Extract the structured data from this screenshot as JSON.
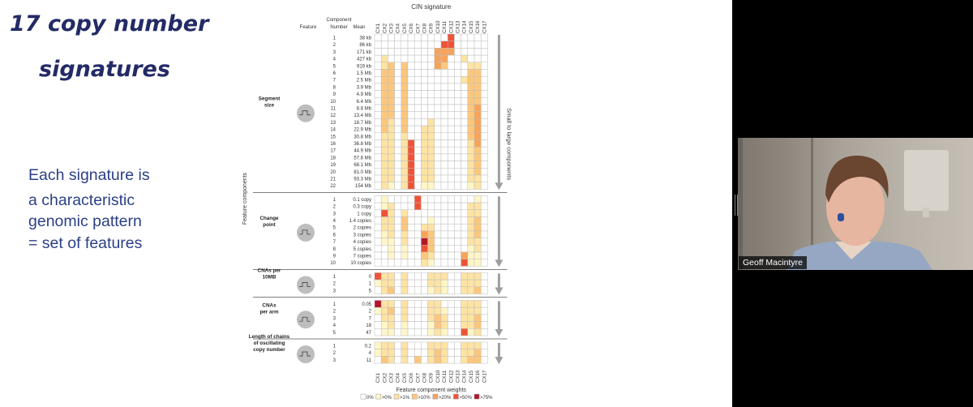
{
  "slide": {
    "title_line1": "17 copy number",
    "title_line2": "signatures",
    "body_lines": [
      "Each signature is",
      "a characteristic",
      "genomic pattern",
      "= set of features"
    ]
  },
  "figure": {
    "header_title": "CIN signature",
    "col_header_feature": "Feature",
    "col_header_component": "Component",
    "col_header_number": "Number",
    "col_header_mean": "Mean",
    "y_axis_label": "Feature components",
    "arrow_label": "Small to large components",
    "x_axis_label": "Feature component weights",
    "signatures": [
      "CX1",
      "CX2",
      "CX3",
      "CX4",
      "CX5",
      "CX6",
      "CX7",
      "CX8",
      "CX9",
      "CX10",
      "CX11",
      "CX12",
      "CX13",
      "CX14",
      "CX15",
      "CX16",
      "CX17"
    ],
    "legend": [
      {
        "label": "0%",
        "color": "#ffffff"
      },
      {
        "label": ">0%",
        "color": "#fff6c8"
      },
      {
        "label": ">1%",
        "color": "#fde3a4"
      },
      {
        "label": ">10%",
        "color": "#fcc77c"
      },
      {
        "label": ">20%",
        "color": "#f7a35a"
      },
      {
        "label": ">50%",
        "color": "#ee5338"
      },
      {
        "label": ">75%",
        "color": "#b3152b"
      }
    ],
    "features": [
      {
        "name_lines": [
          "Segment",
          "size"
        ],
        "components": [
          {
            "n": "1",
            "mean": "38 kb",
            "levels": [
              0,
              0,
              0,
              0,
              0,
              0,
              0,
              0,
              0,
              0,
              0,
              5,
              0,
              0,
              0,
              0,
              0
            ]
          },
          {
            "n": "2",
            "mean": "86 kb",
            "levels": [
              0,
              0,
              0,
              0,
              0,
              0,
              0,
              0,
              0,
              0,
              5,
              5,
              0,
              0,
              0,
              0,
              0
            ]
          },
          {
            "n": "3",
            "mean": "171 kb",
            "levels": [
              0,
              0,
              0,
              0,
              0,
              0,
              0,
              0,
              0,
              4,
              4,
              4,
              0,
              0,
              0,
              0,
              0
            ]
          },
          {
            "n": "4",
            "mean": "427 kb",
            "levels": [
              0,
              2,
              0,
              0,
              0,
              0,
              0,
              0,
              0,
              4,
              4,
              0,
              0,
              2,
              0,
              0,
              0
            ]
          },
          {
            "n": "5",
            "mean": "919 kb",
            "levels": [
              0,
              2,
              3,
              0,
              3,
              0,
              0,
              0,
              0,
              4,
              3,
              0,
              0,
              0,
              2,
              2,
              0
            ]
          },
          {
            "n": "6",
            "mean": "1.5 Mb",
            "levels": [
              0,
              3,
              3,
              0,
              3,
              0,
              0,
              0,
              0,
              0,
              0,
              0,
              0,
              0,
              3,
              3,
              0
            ]
          },
          {
            "n": "7",
            "mean": "2.5 Mb",
            "levels": [
              0,
              3,
              3,
              0,
              3,
              0,
              0,
              0,
              0,
              0,
              0,
              0,
              0,
              2,
              3,
              3,
              0
            ]
          },
          {
            "n": "8",
            "mean": "3.9 Mb",
            "levels": [
              0,
              3,
              3,
              0,
              3,
              0,
              0,
              0,
              0,
              0,
              0,
              0,
              0,
              0,
              3,
              3,
              0
            ]
          },
          {
            "n": "9",
            "mean": "4.9 Mb",
            "levels": [
              0,
              3,
              3,
              0,
              3,
              0,
              0,
              0,
              0,
              0,
              0,
              0,
              0,
              0,
              3,
              3,
              0
            ]
          },
          {
            "n": "10",
            "mean": "6.4 Mb",
            "levels": [
              0,
              3,
              3,
              0,
              3,
              0,
              0,
              0,
              0,
              0,
              0,
              0,
              0,
              0,
              3,
              3,
              0
            ]
          },
          {
            "n": "11",
            "mean": "8.8 Mb",
            "levels": [
              0,
              3,
              3,
              0,
              3,
              0,
              0,
              0,
              0,
              0,
              0,
              0,
              0,
              0,
              3,
              4,
              0
            ]
          },
          {
            "n": "12",
            "mean": "13.4 Mb",
            "levels": [
              0,
              3,
              3,
              0,
              3,
              0,
              0,
              0,
              0,
              0,
              0,
              0,
              0,
              0,
              3,
              4,
              0
            ]
          },
          {
            "n": "13",
            "mean": "18.7 Mb",
            "levels": [
              0,
              3,
              2,
              0,
              3,
              0,
              0,
              0,
              2,
              0,
              0,
              0,
              0,
              0,
              3,
              4,
              0
            ]
          },
          {
            "n": "14",
            "mean": "22.9 Mb",
            "levels": [
              0,
              3,
              2,
              0,
              3,
              0,
              0,
              2,
              2,
              0,
              0,
              0,
              0,
              0,
              3,
              4,
              0
            ]
          },
          {
            "n": "15",
            "mean": "30.8 Mb",
            "levels": [
              0,
              2,
              2,
              0,
              2,
              0,
              0,
              2,
              2,
              0,
              0,
              0,
              0,
              0,
              3,
              4,
              0
            ]
          },
          {
            "n": "16",
            "mean": "36.8 Mb",
            "levels": [
              0,
              2,
              2,
              0,
              2,
              5,
              0,
              2,
              2,
              0,
              0,
              0,
              0,
              0,
              2,
              4,
              0
            ]
          },
          {
            "n": "17",
            "mean": "44.9 Mb",
            "levels": [
              0,
              2,
              2,
              0,
              2,
              5,
              0,
              2,
              2,
              0,
              0,
              0,
              0,
              0,
              2,
              3,
              0
            ]
          },
          {
            "n": "18",
            "mean": "57.8 Mb",
            "levels": [
              0,
              2,
              2,
              0,
              2,
              5,
              0,
              2,
              2,
              0,
              0,
              0,
              0,
              0,
              2,
              3,
              0
            ]
          },
          {
            "n": "19",
            "mean": "68.1 Mb",
            "levels": [
              0,
              2,
              2,
              0,
              2,
              5,
              0,
              2,
              2,
              0,
              0,
              0,
              0,
              0,
              2,
              3,
              0
            ]
          },
          {
            "n": "20",
            "mean": "81.0 Mb",
            "levels": [
              0,
              2,
              2,
              0,
              2,
              5,
              0,
              2,
              2,
              0,
              0,
              0,
              0,
              0,
              2,
              3,
              0
            ]
          },
          {
            "n": "21",
            "mean": "93.3 Mb",
            "levels": [
              0,
              2,
              2,
              0,
              2,
              5,
              0,
              2,
              2,
              0,
              0,
              0,
              0,
              0,
              2,
              2,
              0
            ]
          },
          {
            "n": "22",
            "mean": "154 Mb",
            "levels": [
              0,
              2,
              1,
              0,
              2,
              5,
              0,
              1,
              1,
              0,
              0,
              0,
              0,
              0,
              1,
              2,
              0
            ]
          }
        ]
      },
      {
        "name_lines": [
          "Change",
          "point"
        ],
        "components": [
          {
            "n": "1",
            "mean": "0.1 copy",
            "levels": [
              0,
              1,
              0,
              0,
              0,
              0,
              5,
              0,
              0,
              0,
              0,
              0,
              0,
              0,
              0,
              1,
              0
            ]
          },
          {
            "n": "2",
            "mean": "0.3 copy",
            "levels": [
              0,
              1,
              2,
              0,
              0,
              0,
              5,
              0,
              0,
              0,
              0,
              0,
              0,
              0,
              2,
              2,
              0
            ]
          },
          {
            "n": "3",
            "mean": "1 copy",
            "levels": [
              0,
              5,
              2,
              0,
              2,
              0,
              0,
              0,
              0,
              0,
              0,
              0,
              0,
              0,
              2,
              2,
              0
            ]
          },
          {
            "n": "4",
            "mean": "1.4 copies",
            "levels": [
              0,
              2,
              2,
              0,
              3,
              0,
              0,
              0,
              1,
              0,
              0,
              0,
              0,
              0,
              2,
              3,
              0
            ]
          },
          {
            "n": "5",
            "mean": "2 copies",
            "levels": [
              0,
              2,
              2,
              0,
              3,
              0,
              0,
              2,
              2,
              0,
              0,
              0,
              0,
              0,
              2,
              3,
              0
            ]
          },
          {
            "n": "6",
            "mean": "3 copies",
            "levels": [
              0,
              1,
              2,
              0,
              2,
              0,
              0,
              4,
              3,
              0,
              0,
              0,
              0,
              0,
              2,
              3,
              0
            ]
          },
          {
            "n": "7",
            "mean": "4 copies",
            "levels": [
              0,
              1,
              1,
              0,
              2,
              0,
              0,
              6,
              3,
              0,
              0,
              0,
              0,
              0,
              2,
              2,
              0
            ]
          },
          {
            "n": "8",
            "mean": "5 copies",
            "levels": [
              0,
              0,
              1,
              0,
              1,
              0,
              0,
              5,
              3,
              0,
              0,
              0,
              0,
              0,
              1,
              2,
              0
            ]
          },
          {
            "n": "9",
            "mean": "7 copies",
            "levels": [
              0,
              0,
              1,
              0,
              1,
              0,
              0,
              3,
              2,
              0,
              0,
              0,
              0,
              4,
              1,
              1,
              0
            ]
          },
          {
            "n": "10",
            "mean": "10 copies",
            "levels": [
              0,
              0,
              0,
              0,
              0,
              0,
              0,
              2,
              1,
              0,
              0,
              0,
              0,
              5,
              1,
              1,
              0
            ]
          }
        ]
      },
      {
        "name_lines": [
          "CNAs per",
          "10MB"
        ],
        "components": [
          {
            "n": "1",
            "mean": "0",
            "levels": [
              5,
              2,
              2,
              0,
              2,
              0,
              0,
              0,
              2,
              2,
              2,
              0,
              0,
              2,
              2,
              2,
              0
            ]
          },
          {
            "n": "2",
            "mean": "1",
            "levels": [
              1,
              2,
              2,
              0,
              2,
              0,
              0,
              0,
              2,
              2,
              1,
              0,
              0,
              2,
              2,
              2,
              0
            ]
          },
          {
            "n": "3",
            "mean": "5",
            "levels": [
              0,
              2,
              3,
              0,
              2,
              0,
              0,
              0,
              1,
              2,
              1,
              0,
              0,
              2,
              2,
              3,
              0
            ]
          }
        ]
      },
      {
        "name_lines": [
          "CNAs",
          "per arm"
        ],
        "components": [
          {
            "n": "1",
            "mean": "0.05",
            "levels": [
              6,
              2,
              2,
              0,
              2,
              0,
              0,
              0,
              2,
              2,
              0,
              0,
              0,
              2,
              2,
              2,
              0
            ]
          },
          {
            "n": "2",
            "mean": "2",
            "levels": [
              1,
              2,
              3,
              0,
              2,
              0,
              0,
              0,
              2,
              2,
              1,
              0,
              0,
              2,
              2,
              2,
              0
            ]
          },
          {
            "n": "3",
            "mean": "7",
            "levels": [
              0,
              2,
              2,
              0,
              2,
              0,
              0,
              0,
              2,
              3,
              2,
              0,
              0,
              2,
              2,
              3,
              0
            ]
          },
          {
            "n": "4",
            "mean": "18",
            "levels": [
              0,
              1,
              2,
              0,
              1,
              0,
              0,
              0,
              1,
              3,
              2,
              0,
              0,
              2,
              2,
              3,
              0
            ]
          },
          {
            "n": "5",
            "mean": "47",
            "levels": [
              0,
              1,
              1,
              0,
              1,
              0,
              0,
              0,
              1,
              2,
              1,
              0,
              0,
              5,
              1,
              2,
              0
            ]
          }
        ]
      },
      {
        "name_lines": [
          "Length of  chains",
          "of oscillating",
          "copy number"
        ],
        "components": [
          {
            "n": "1",
            "mean": "0.2",
            "levels": [
              1,
              2,
              2,
              0,
              2,
              0,
              0,
              0,
              2,
              2,
              2,
              0,
              0,
              2,
              2,
              2,
              0
            ]
          },
          {
            "n": "2",
            "mean": "4",
            "levels": [
              1,
              2,
              2,
              0,
              2,
              0,
              0,
              0,
              2,
              3,
              2,
              0,
              0,
              2,
              2,
              3,
              0
            ]
          },
          {
            "n": "3",
            "mean": "11",
            "levels": [
              0,
              3,
              2,
              0,
              2,
              0,
              3,
              0,
              2,
              3,
              2,
              0,
              0,
              2,
              3,
              3,
              0
            ]
          }
        ]
      }
    ]
  },
  "video": {
    "participant_name": "Geoff Macintyre"
  }
}
